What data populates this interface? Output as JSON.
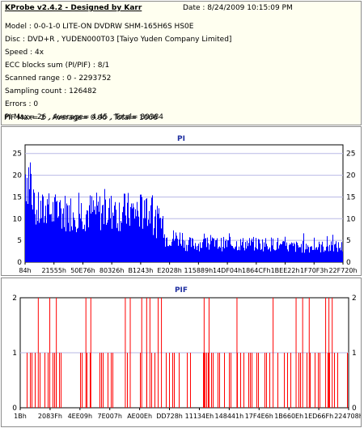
{
  "header": {
    "title": "KProbe v2.4.2 - Designed by Karr",
    "date": "Date : 8/24/2009 10:15:09 PM",
    "lines": [
      "Model : 0-0-1-0 LITE-ON DVDRW SHM-165H6S HS0E",
      "Disc : DVD+R , YUDEN000T03 [Taiyo Yuden Company Limited]",
      "Speed : 4x",
      "ECC blocks sum (PI/PIF) : 8/1",
      "Scanned range : 0 - 2293752",
      "Sampling count : 126482",
      "Errors : 0",
      "PI Max= 26 , Average= 4.45 , Total= 80384",
      "PIF Max= 2 , Average= 0.06 , Total= 1066"
    ]
  },
  "colors": {
    "pi_bar": "#0000ff",
    "pif_bar": "#ff0000",
    "title": "#1f2fa0",
    "grid": "#b9b9e6"
  },
  "chart_data": [
    {
      "type": "bar",
      "title": "PI",
      "ylim": [
        0,
        27
      ],
      "yticks": [
        0,
        5,
        10,
        15,
        20,
        25
      ],
      "xticks": [
        "84h",
        "21555h",
        "50E76h",
        "80326h",
        "B1243h",
        "E2028h",
        "115889h",
        "14DF04h",
        "1864CFh",
        "1BEE22h",
        "1F70F3h",
        "22F720h"
      ],
      "grid": true,
      "max": 26,
      "average": 4.45,
      "segments": [
        {
          "from": 0.0,
          "to": 0.02,
          "level": 22,
          "peak": 26
        },
        {
          "from": 0.02,
          "to": 0.4,
          "level": 12.5,
          "peak": 17
        },
        {
          "from": 0.4,
          "to": 0.44,
          "level": 10,
          "peak": 15
        },
        {
          "from": 0.44,
          "to": 0.5,
          "level": 6,
          "peak": 9
        },
        {
          "from": 0.5,
          "to": 0.8,
          "level": 4.5,
          "peak": 7
        },
        {
          "from": 0.8,
          "to": 1.0,
          "level": 3.8,
          "peak": 7
        }
      ]
    },
    {
      "type": "bar",
      "title": "PIF",
      "ylim": [
        0,
        2
      ],
      "yticks": [
        0,
        1,
        2
      ],
      "xticks": [
        "1Bh",
        "2083Fh",
        "4EE09h",
        "7E007h",
        "AE00Eh",
        "DD728h",
        "11134Eh",
        "148441h",
        "17F4E6h",
        "1B660Eh",
        "1ED66Fh",
        "224708h"
      ],
      "grid": true,
      "max": 2,
      "average": 0.06,
      "spikes_value2": [
        0.055,
        0.09,
        0.11,
        0.2,
        0.215,
        0.32,
        0.335,
        0.37,
        0.385,
        0.395,
        0.42,
        0.43,
        0.56,
        0.575,
        0.66,
        0.77,
        0.84,
        0.86,
        0.88,
        0.93,
        0.94,
        0.95
      ]
    }
  ]
}
